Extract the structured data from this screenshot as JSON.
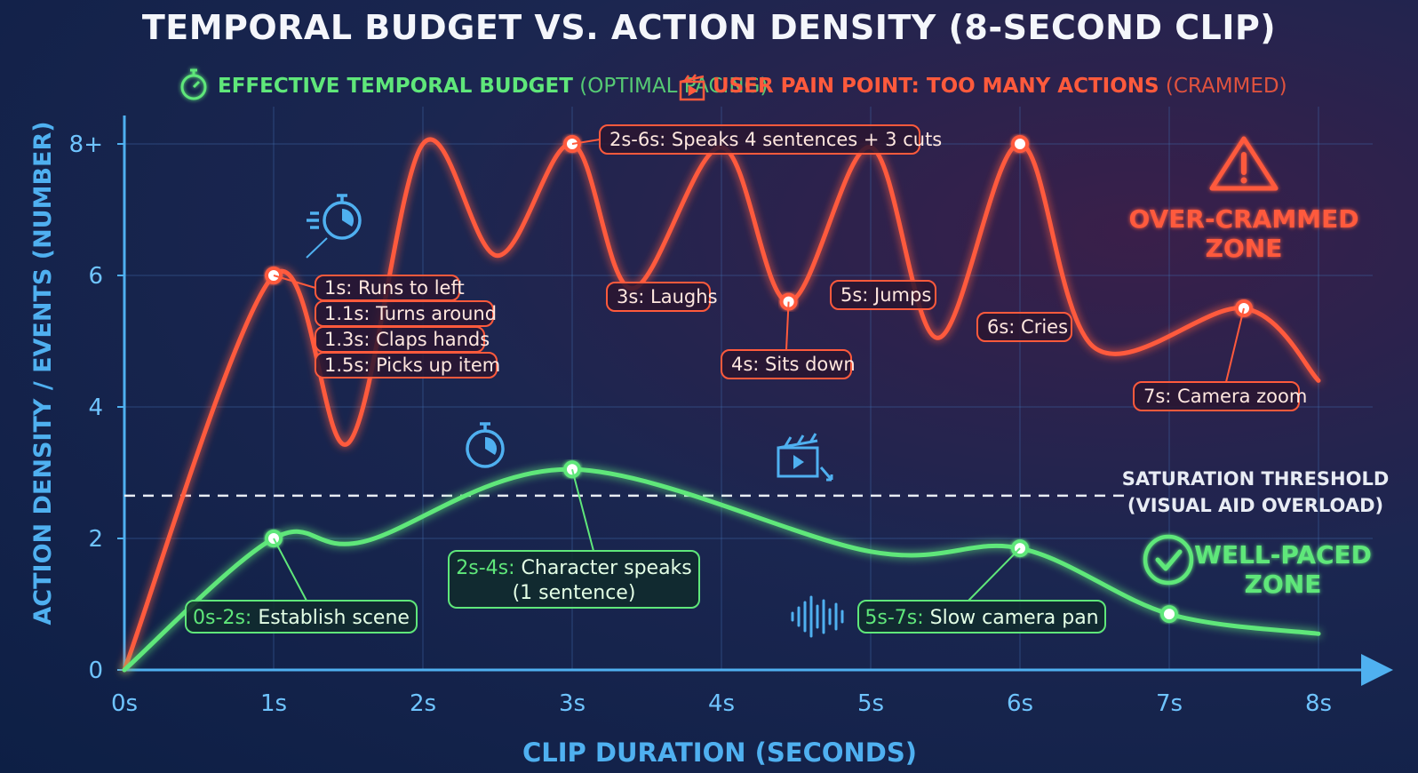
{
  "chart_data": {
    "type": "line",
    "title": "TEMPORAL BUDGET VS. ACTION DENSITY (8-SECOND CLIP)",
    "xlabel": "CLIP DURATION (SECONDS)",
    "ylabel": "ACTION DENSITY / EVENTS (NUMBER)",
    "xlim": [
      0,
      8
    ],
    "ylim": [
      0,
      8
    ],
    "x_ticks": [
      "0s",
      "1s",
      "2s",
      "3s",
      "4s",
      "5s",
      "6s",
      "7s",
      "8s"
    ],
    "y_ticks": [
      {
        "value": 0,
        "label": "0"
      },
      {
        "value": 2,
        "label": "2"
      },
      {
        "value": 4,
        "label": "4"
      },
      {
        "value": 6,
        "label": "6"
      },
      {
        "value": 8,
        "label": "8+"
      }
    ],
    "grid": true,
    "legend": [
      {
        "bold": "EFFECTIVE TEMPORAL BUDGET",
        "light": " (OPTIMAL PACING)",
        "color": "#5fe77a",
        "icon": "stopwatch-icon"
      },
      {
        "bold": "USER PAIN POINT: TOO MANY ACTIONS",
        "light": " (CRAMMED)",
        "color": "#ff5a3c",
        "icon": "clapperboard-icon"
      }
    ],
    "series": [
      {
        "key": "crammed",
        "color": "#ff5a3c",
        "points": [
          [
            0,
            0
          ],
          [
            1,
            6
          ],
          [
            1.5,
            3.45
          ],
          [
            2,
            8
          ],
          [
            2.5,
            6.3
          ],
          [
            3,
            8
          ],
          [
            3.4,
            5.8
          ],
          [
            4,
            7.95
          ],
          [
            4.45,
            5.6
          ],
          [
            5,
            7.95
          ],
          [
            5.45,
            5.05
          ],
          [
            6,
            8
          ],
          [
            6.5,
            4.9
          ],
          [
            7.5,
            5.5
          ],
          [
            8,
            4.4
          ]
        ],
        "markers": [
          [
            1,
            6
          ],
          [
            3,
            8
          ],
          [
            4.45,
            5.6
          ],
          [
            6,
            8
          ],
          [
            7.5,
            5.5
          ]
        ]
      },
      {
        "key": "paced",
        "color": "#5fe77a",
        "points": [
          [
            0,
            0
          ],
          [
            1,
            2
          ],
          [
            1.6,
            1.95
          ],
          [
            3,
            3.05
          ],
          [
            5,
            1.8
          ],
          [
            6,
            1.85
          ],
          [
            7,
            0.85
          ],
          [
            8,
            0.55
          ]
        ],
        "markers": [
          [
            1,
            2
          ],
          [
            3,
            3.05
          ],
          [
            6,
            1.85
          ],
          [
            7,
            0.85
          ]
        ]
      }
    ],
    "threshold": {
      "value": 2.65,
      "label_lines": [
        "SATURATION THRESHOLD",
        "(VISUAL AID OVERLOAD)"
      ]
    },
    "red_annotations": {
      "stack": [
        "1s: Runs to left",
        "1.1s: Turns around",
        "1.3s: Claps hands",
        "1.5s: Picks up item"
      ],
      "items": [
        {
          "text": "2s-6s: Speaks 4 sentences + 3 cuts"
        },
        {
          "text": "3s: Laughs"
        },
        {
          "text": "4s: Sits down"
        },
        {
          "text": "5s: Jumps"
        },
        {
          "text": "6s: Cries"
        },
        {
          "text": "7s: Camera zoom"
        }
      ]
    },
    "green_annotations": [
      {
        "time": "0s-2s:",
        "text": " Establish scene"
      },
      {
        "time": "2s-4s:",
        "text": " Character speaks",
        "line2": "(1 sentence)"
      },
      {
        "time": "5s-7s:",
        "text": " Slow camera pan"
      }
    ],
    "zones": {
      "over": [
        "OVER-CRAMMED",
        "ZONE"
      ],
      "well": [
        "WELL-PACED",
        "ZONE"
      ]
    }
  }
}
